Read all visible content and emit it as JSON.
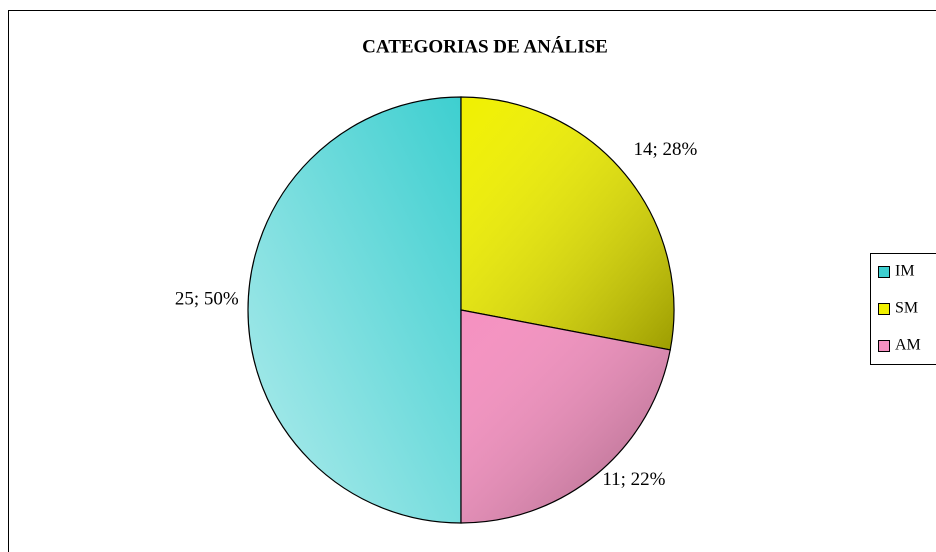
{
  "chart_data": {
    "type": "pie",
    "title": "CATEGORIAS DE ANÁLISE",
    "categories": [
      "IM",
      "SM",
      "AM"
    ],
    "values": [
      25,
      14,
      11
    ],
    "value_labels": [
      "25; 50%",
      "14; 28%",
      "11; 22%"
    ],
    "colors": [
      "#3ecfd0",
      "#f0f000",
      "#f590c0"
    ],
    "legend": "right"
  }
}
